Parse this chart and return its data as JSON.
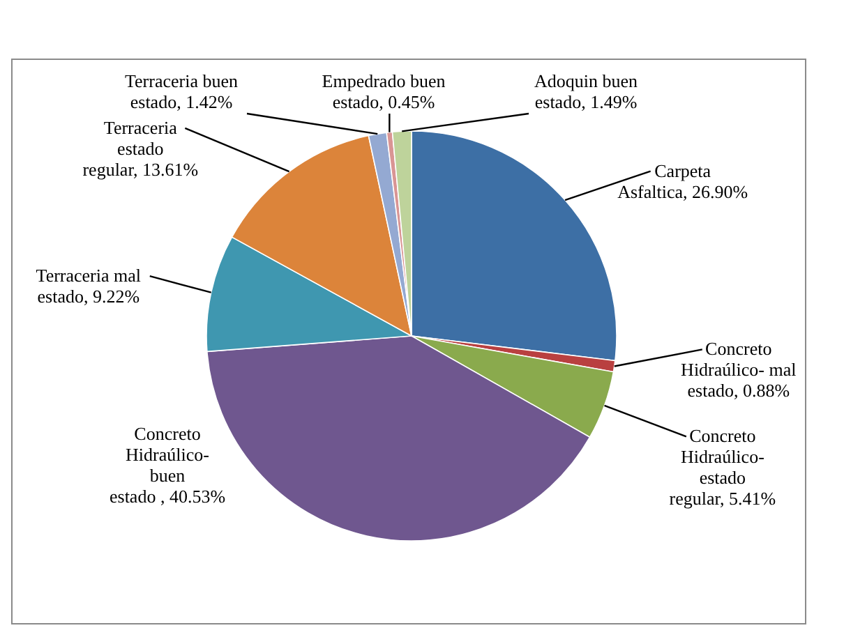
{
  "chart_data": {
    "type": "pie",
    "categories": [
      "Carpeta Asfaltica",
      "Concreto Hidraúlico- mal estado",
      "Concreto Hidraúlico- estado regular",
      "Concreto Hidraúlico- buen estado ",
      "Terraceria mal estado",
      "Terraceria estado regular",
      "Terraceria buen estado",
      "Empedrado buen estado",
      "Adoquin buen estado"
    ],
    "values": [
      26.9,
      0.88,
      5.41,
      40.53,
      9.22,
      13.61,
      1.42,
      0.45,
      1.49
    ],
    "value_labels": [
      "26.90%",
      "0.88%",
      "5.41%",
      "40.53%",
      "9.22%",
      "13.61%",
      "1.42%",
      "0.45%",
      "1.49%"
    ],
    "colors": [
      "#3d6fa5",
      "#b94040",
      "#8aaa4d",
      "#6f578f",
      "#3f97b0",
      "#dc843a",
      "#94a9d2",
      "#d99594",
      "#bed39b"
    ]
  }
}
